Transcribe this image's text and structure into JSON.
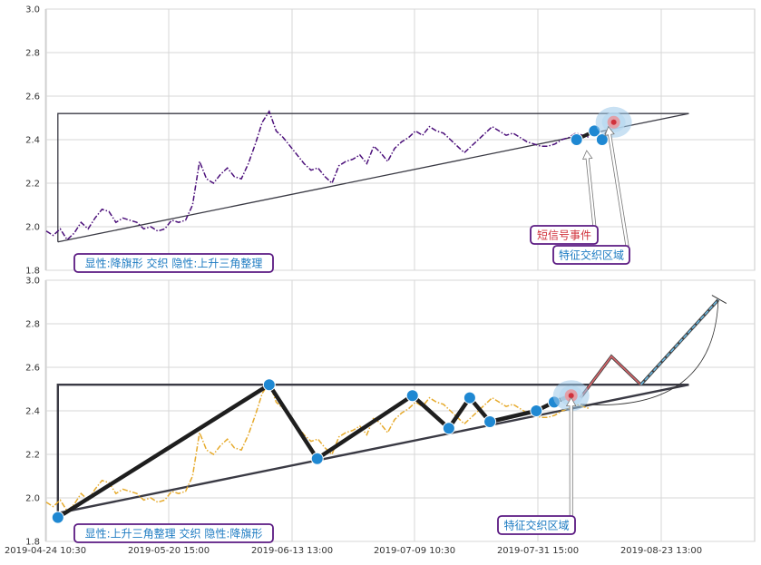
{
  "chart_data": [
    {
      "type": "line",
      "panel": "top",
      "ylim": [
        1.8,
        3.0
      ],
      "yticks": [
        "1.8",
        "2.0",
        "2.2",
        "2.4",
        "2.6",
        "2.8",
        "3.0"
      ],
      "grid": true,
      "series": [
        {
          "style": "dash-dot",
          "color": "#4b0f7a",
          "points": [
            [
              0.0,
              1.98
            ],
            [
              0.9,
              1.96
            ],
            [
              1.8,
              1.99
            ],
            [
              2.7,
              1.94
            ],
            [
              3.6,
              1.97
            ],
            [
              4.5,
              2.02
            ],
            [
              5.4,
              1.99
            ],
            [
              6.3,
              2.04
            ],
            [
              7.2,
              2.08
            ],
            [
              8.1,
              2.07
            ],
            [
              9.0,
              2.02
            ],
            [
              9.9,
              2.04
            ],
            [
              10.8,
              2.03
            ],
            [
              11.7,
              2.02
            ],
            [
              12.6,
              1.99
            ],
            [
              13.5,
              2.0
            ],
            [
              14.4,
              1.98
            ],
            [
              15.3,
              1.99
            ],
            [
              16.2,
              2.03
            ],
            [
              17.1,
              2.02
            ],
            [
              18.0,
              2.03
            ],
            [
              18.9,
              2.1
            ],
            [
              19.8,
              2.3
            ],
            [
              20.7,
              2.22
            ],
            [
              21.6,
              2.2
            ],
            [
              22.5,
              2.24
            ],
            [
              23.4,
              2.27
            ],
            [
              24.3,
              2.23
            ],
            [
              25.2,
              2.22
            ],
            [
              26.1,
              2.29
            ],
            [
              27.0,
              2.38
            ],
            [
              27.9,
              2.48
            ],
            [
              28.8,
              2.53
            ],
            [
              29.7,
              2.44
            ],
            [
              30.6,
              2.41
            ],
            [
              31.5,
              2.37
            ],
            [
              32.4,
              2.33
            ],
            [
              33.3,
              2.29
            ],
            [
              34.2,
              2.26
            ],
            [
              35.1,
              2.27
            ],
            [
              36.0,
              2.23
            ],
            [
              36.9,
              2.2
            ],
            [
              37.8,
              2.28
            ],
            [
              38.7,
              2.3
            ],
            [
              39.6,
              2.31
            ],
            [
              40.5,
              2.33
            ],
            [
              41.4,
              2.29
            ],
            [
              42.3,
              2.37
            ],
            [
              43.2,
              2.34
            ],
            [
              44.1,
              2.3
            ],
            [
              45.0,
              2.36
            ],
            [
              45.9,
              2.39
            ],
            [
              46.8,
              2.41
            ],
            [
              47.7,
              2.44
            ],
            [
              48.6,
              2.42
            ],
            [
              49.5,
              2.46
            ],
            [
              50.4,
              2.44
            ],
            [
              51.3,
              2.43
            ],
            [
              52.2,
              2.4
            ],
            [
              53.1,
              2.37
            ],
            [
              54.0,
              2.34
            ],
            [
              54.9,
              2.37
            ],
            [
              55.8,
              2.4
            ],
            [
              56.7,
              2.43
            ],
            [
              57.6,
              2.46
            ],
            [
              58.5,
              2.44
            ],
            [
              59.4,
              2.42
            ],
            [
              60.3,
              2.43
            ],
            [
              61.2,
              2.41
            ],
            [
              62.1,
              2.39
            ],
            [
              63.0,
              2.38
            ],
            [
              63.9,
              2.37
            ],
            [
              64.8,
              2.37
            ],
            [
              65.7,
              2.38
            ],
            [
              66.6,
              2.4
            ],
            [
              67.5,
              2.41
            ],
            [
              68.4,
              2.43
            ],
            [
              69.3,
              2.42
            ],
            [
              70.2,
              2.41
            ]
          ]
        }
      ],
      "pattern_lines": [
        {
          "color": "#3a3a44",
          "points": [
            [
              1.5,
              1.93
            ],
            [
              1.5,
              2.52
            ],
            [
              83.0,
              2.52
            ]
          ]
        },
        {
          "color": "#3a3a44",
          "points": [
            [
              1.5,
              1.93
            ],
            [
              83.0,
              2.52
            ]
          ]
        }
      ],
      "markers": [
        {
          "x": 68.5,
          "y": 2.4
        },
        {
          "x": 70.8,
          "y": 2.44
        },
        {
          "x": 71.8,
          "y": 2.4
        }
      ],
      "marker_path": [
        [
          68.5,
          2.4
        ],
        [
          70.8,
          2.44
        ],
        [
          71.8,
          2.4
        ],
        [
          72.8,
          2.45
        ]
      ],
      "marker_color": "#1f88d2",
      "highlight_zone": {
        "x": 73.3,
        "y": 2.48
      },
      "annotations": [
        {
          "text": "显性:降旗形 交织 隐性:上升三角整理",
          "text_color": "#1d7bc2",
          "border": "#5b1a82"
        },
        {
          "text": "短信号事件",
          "text_color": "#d0323c",
          "border": "#5b1a82",
          "arrow_to": [
            69.8,
            2.35
          ]
        },
        {
          "text": "特征交织区域",
          "text_color": "#1d7bc2",
          "border": "#5b1a82",
          "arrow_to": [
            72.6,
            2.46
          ]
        }
      ]
    },
    {
      "type": "line",
      "panel": "bottom",
      "ylim": [
        1.8,
        3.0
      ],
      "yticks": [
        "1.8",
        "2.0",
        "2.2",
        "2.4",
        "2.6",
        "2.8",
        "3.0"
      ],
      "x_tick_labels": [
        "2019-04-24 10:30",
        "2019-05-20 15:00",
        "2019-06-13 13:00",
        "2019-07-09 10:30",
        "2019-07-31 15:00",
        "2019-08-23 13:00"
      ],
      "grid": true,
      "series": [
        {
          "style": "dash-dot",
          "color": "#e6aa2c",
          "points": [
            [
              0.0,
              1.98
            ],
            [
              0.9,
              1.96
            ],
            [
              1.8,
              1.99
            ],
            [
              2.7,
              1.94
            ],
            [
              3.6,
              1.97
            ],
            [
              4.5,
              2.02
            ],
            [
              5.4,
              1.99
            ],
            [
              6.3,
              2.04
            ],
            [
              7.2,
              2.08
            ],
            [
              8.1,
              2.07
            ],
            [
              9.0,
              2.02
            ],
            [
              9.9,
              2.04
            ],
            [
              10.8,
              2.03
            ],
            [
              11.7,
              2.02
            ],
            [
              12.6,
              1.99
            ],
            [
              13.5,
              2.0
            ],
            [
              14.4,
              1.98
            ],
            [
              15.3,
              1.99
            ],
            [
              16.2,
              2.03
            ],
            [
              17.1,
              2.02
            ],
            [
              18.0,
              2.03
            ],
            [
              18.9,
              2.1
            ],
            [
              19.8,
              2.3
            ],
            [
              20.7,
              2.22
            ],
            [
              21.6,
              2.2
            ],
            [
              22.5,
              2.24
            ],
            [
              23.4,
              2.27
            ],
            [
              24.3,
              2.23
            ],
            [
              25.2,
              2.22
            ],
            [
              26.1,
              2.29
            ],
            [
              27.0,
              2.38
            ],
            [
              27.9,
              2.48
            ],
            [
              28.8,
              2.53
            ],
            [
              29.7,
              2.44
            ],
            [
              30.6,
              2.41
            ],
            [
              31.5,
              2.37
            ],
            [
              32.4,
              2.33
            ],
            [
              33.3,
              2.29
            ],
            [
              34.2,
              2.26
            ],
            [
              35.1,
              2.27
            ],
            [
              36.0,
              2.23
            ],
            [
              36.9,
              2.2
            ],
            [
              37.8,
              2.28
            ],
            [
              38.7,
              2.3
            ],
            [
              39.6,
              2.31
            ],
            [
              40.5,
              2.33
            ],
            [
              41.4,
              2.29
            ],
            [
              42.3,
              2.37
            ],
            [
              43.2,
              2.34
            ],
            [
              44.1,
              2.3
            ],
            [
              45.0,
              2.36
            ],
            [
              45.9,
              2.39
            ],
            [
              46.8,
              2.41
            ],
            [
              47.7,
              2.44
            ],
            [
              48.6,
              2.42
            ],
            [
              49.5,
              2.46
            ],
            [
              50.4,
              2.44
            ],
            [
              51.3,
              2.43
            ],
            [
              52.2,
              2.4
            ],
            [
              53.1,
              2.37
            ],
            [
              54.0,
              2.34
            ],
            [
              54.9,
              2.37
            ],
            [
              55.8,
              2.4
            ],
            [
              56.7,
              2.43
            ],
            [
              57.6,
              2.46
            ],
            [
              58.5,
              2.44
            ],
            [
              59.4,
              2.42
            ],
            [
              60.3,
              2.43
            ],
            [
              61.2,
              2.41
            ],
            [
              62.1,
              2.39
            ],
            [
              63.0,
              2.38
            ],
            [
              63.9,
              2.37
            ],
            [
              64.8,
              2.37
            ],
            [
              65.7,
              2.38
            ],
            [
              66.6,
              2.4
            ],
            [
              67.5,
              2.41
            ],
            [
              68.4,
              2.43
            ],
            [
              69.3,
              2.42
            ],
            [
              70.2,
              2.41
            ]
          ]
        }
      ],
      "pattern_lines": [
        {
          "color": "#3a3a44",
          "points": [
            [
              1.5,
              1.93
            ],
            [
              1.5,
              2.52
            ],
            [
              83.0,
              2.52
            ]
          ]
        },
        {
          "color": "#3a3a44",
          "points": [
            [
              1.5,
              1.93
            ],
            [
              83.0,
              2.52
            ]
          ]
        }
      ],
      "zigzag": [
        [
          1.5,
          1.91
        ],
        [
          28.8,
          2.52
        ],
        [
          35.0,
          2.18
        ],
        [
          47.3,
          2.47
        ],
        [
          52.0,
          2.32
        ],
        [
          54.7,
          2.46
        ],
        [
          57.3,
          2.35
        ],
        [
          63.3,
          2.4
        ],
        [
          65.6,
          2.44
        ],
        [
          67.8,
          2.47
        ]
      ],
      "zigzag_color": "#1e1e1e",
      "marker_color": "#1f88d2",
      "forecast_red": [
        [
          69.0,
          2.46
        ],
        [
          73.0,
          2.65
        ],
        [
          76.8,
          2.52
        ]
      ],
      "forecast_blue": [
        [
          76.8,
          2.52
        ],
        [
          86.8,
          2.91
        ]
      ],
      "curve": [
        [
          69.0,
          2.43
        ],
        [
          86.8,
          2.91
        ]
      ],
      "highlight_zone": {
        "x": 67.8,
        "y": 2.47
      },
      "annotations": [
        {
          "text": "显性:上升三角整理 交织 隐性:降旗形",
          "text_color": "#1d7bc2",
          "border": "#5b1a82"
        },
        {
          "text": "特征交织区域",
          "text_color": "#1d7bc2",
          "border": "#5b1a82",
          "arrow_to": [
            67.8,
            2.46
          ]
        }
      ]
    }
  ]
}
